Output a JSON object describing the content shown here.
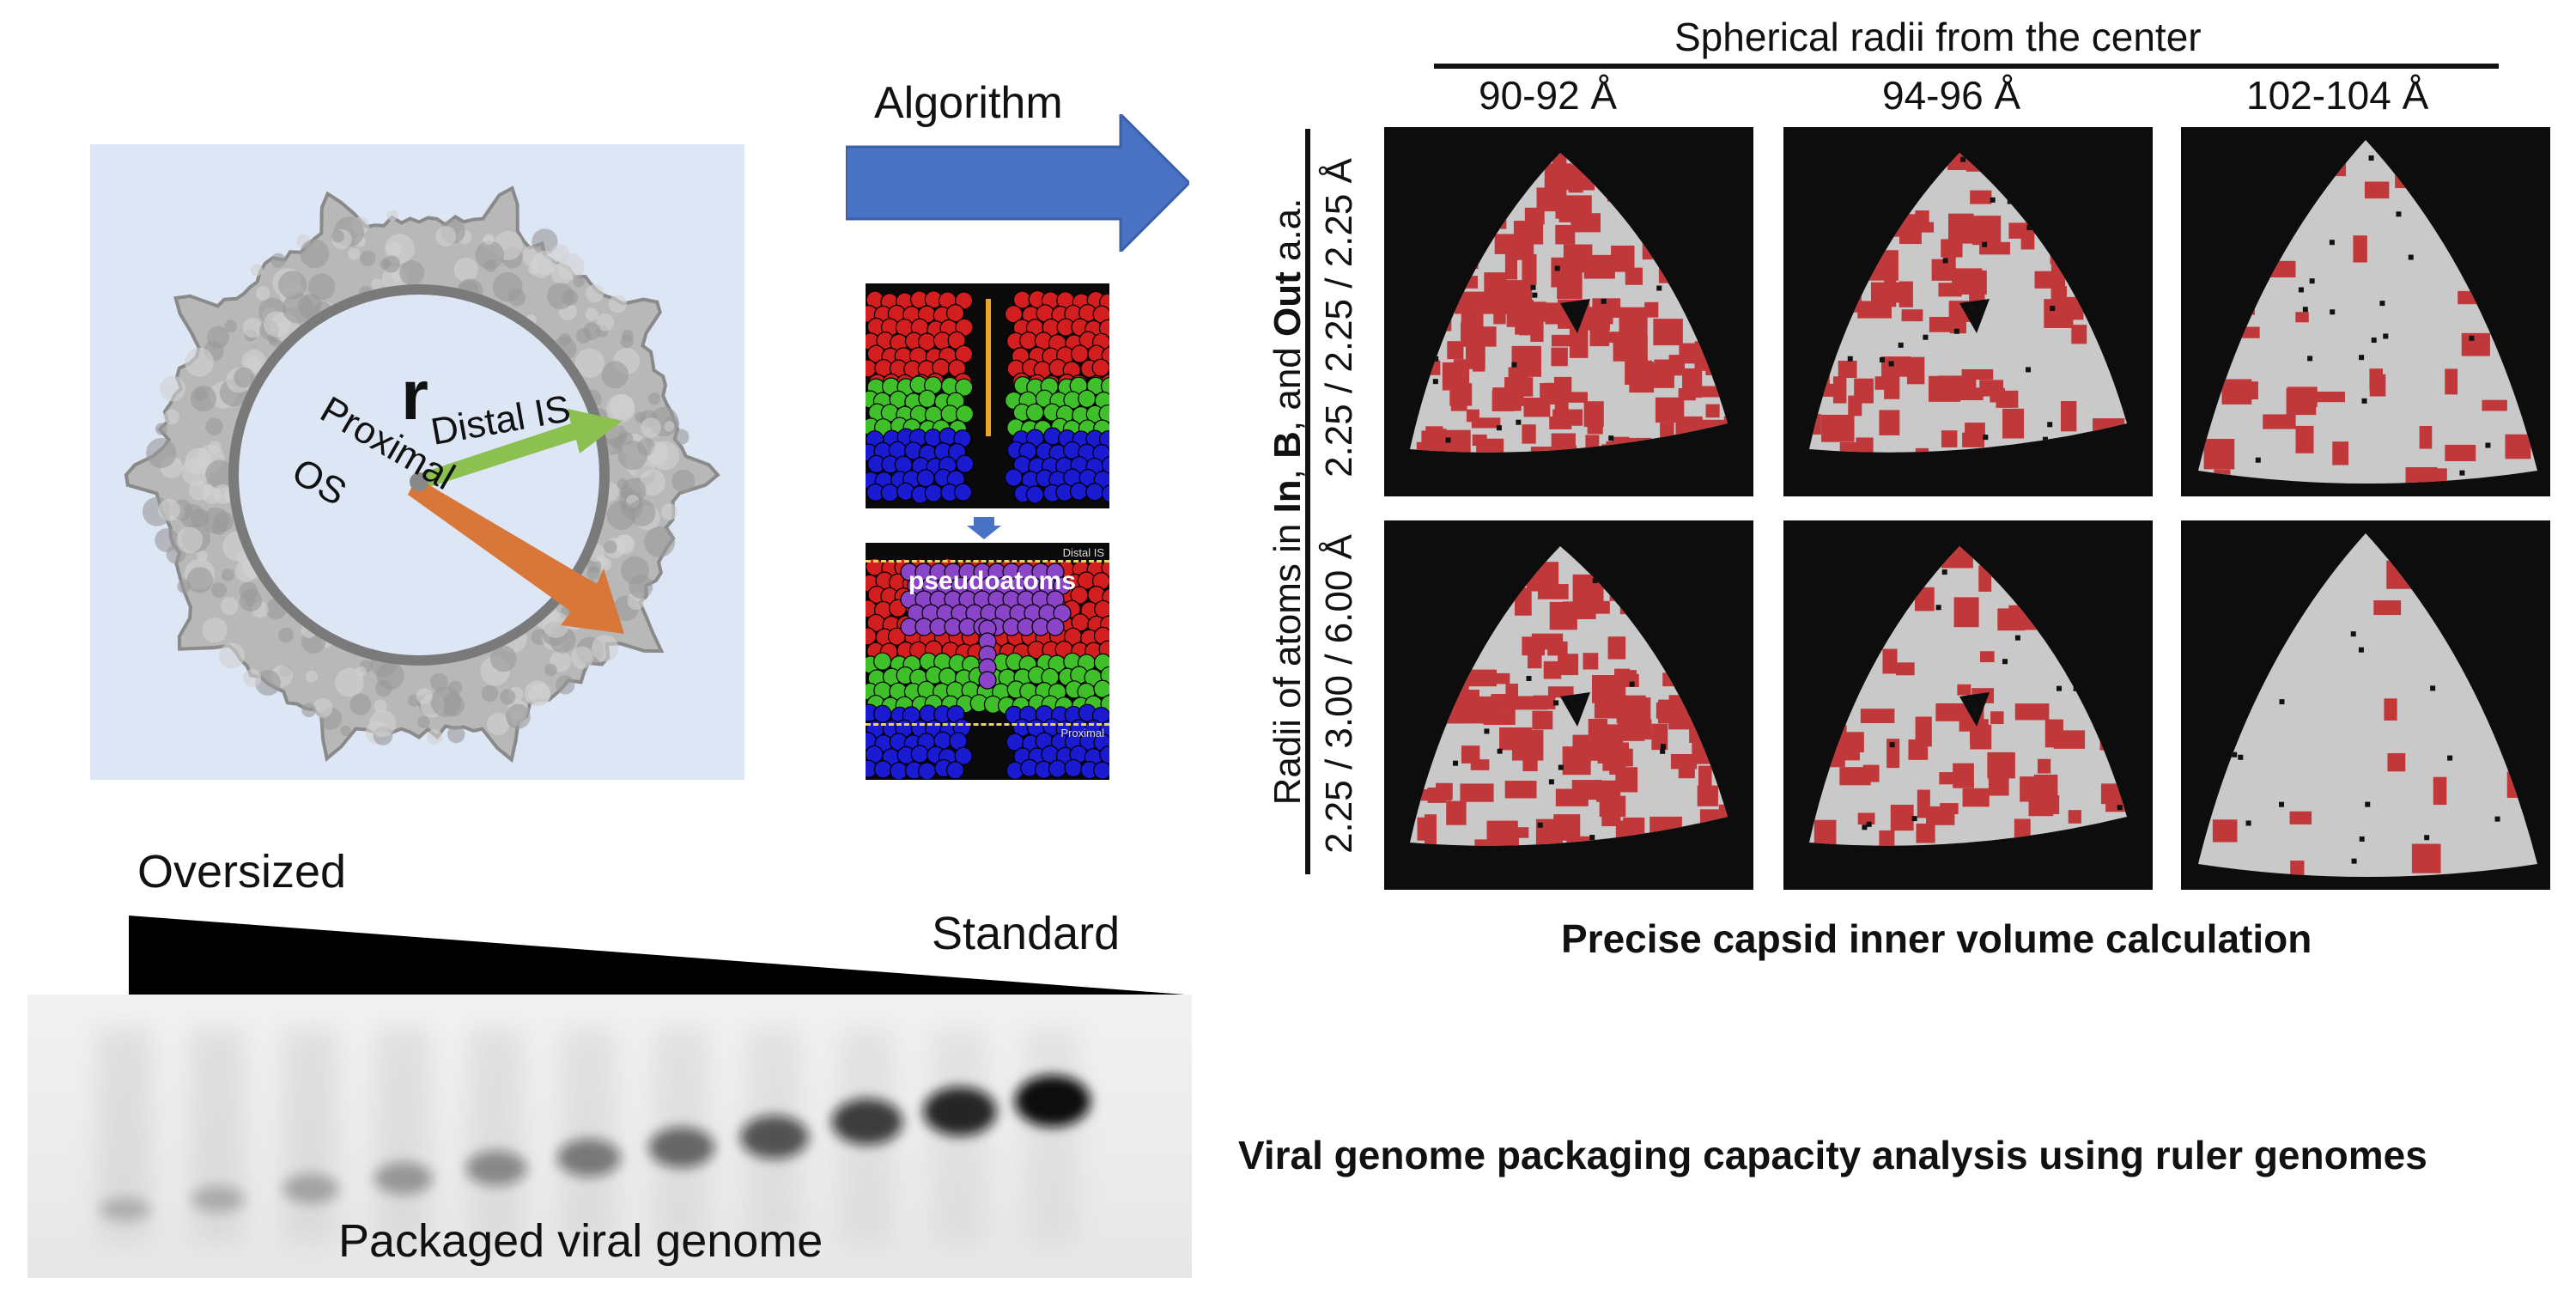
{
  "capsid_panel": {
    "vectors": {
      "r_label": "r",
      "distal_label": "Distal IS",
      "proximal_label": "Proximal",
      "os_label": "OS"
    },
    "colors": {
      "background": "#dde6f5",
      "surface": "#b8b8b8",
      "distal_arrow": "#8cc152",
      "proximal_arrow": "#d9773a"
    }
  },
  "algorithm": {
    "label": "Algorithm",
    "arrow_color": "#4a72c4",
    "inset_labels": {
      "top_right": "Distal IS",
      "bottom_right": "Proximal",
      "pseudoatoms": "pseudoatoms"
    },
    "atom_colors": {
      "red": "#d21e1e",
      "green": "#3fbf2a",
      "blue": "#1a1ad0",
      "purple": "#8a44c8"
    }
  },
  "volume_figure": {
    "header": "Spherical radii from the center",
    "columns": [
      "90-92 Å",
      "94-96 Å",
      "102-104 Å"
    ],
    "row_axis_parts": [
      "Radii of atoms in ",
      "In",
      ", ",
      "B",
      ", and ",
      "Out",
      " a.a."
    ],
    "rows": [
      "2.25 / 2.25 / 2.25 Å",
      "2.25 / 3.00 / 6.00 Å"
    ],
    "caption": "Precise capsid inner volume calculation",
    "colors": {
      "panel_bg": "#0d0d0d",
      "shell": "#c9c9c9",
      "cavity": "#c0383a"
    }
  },
  "gel": {
    "oversized_label": "Oversized",
    "standard_label": "Standard",
    "packaged_label": "Packaged viral genome",
    "lane_count": 11,
    "caption": "Viral genome packaging capacity analysis using ruler genomes"
  }
}
